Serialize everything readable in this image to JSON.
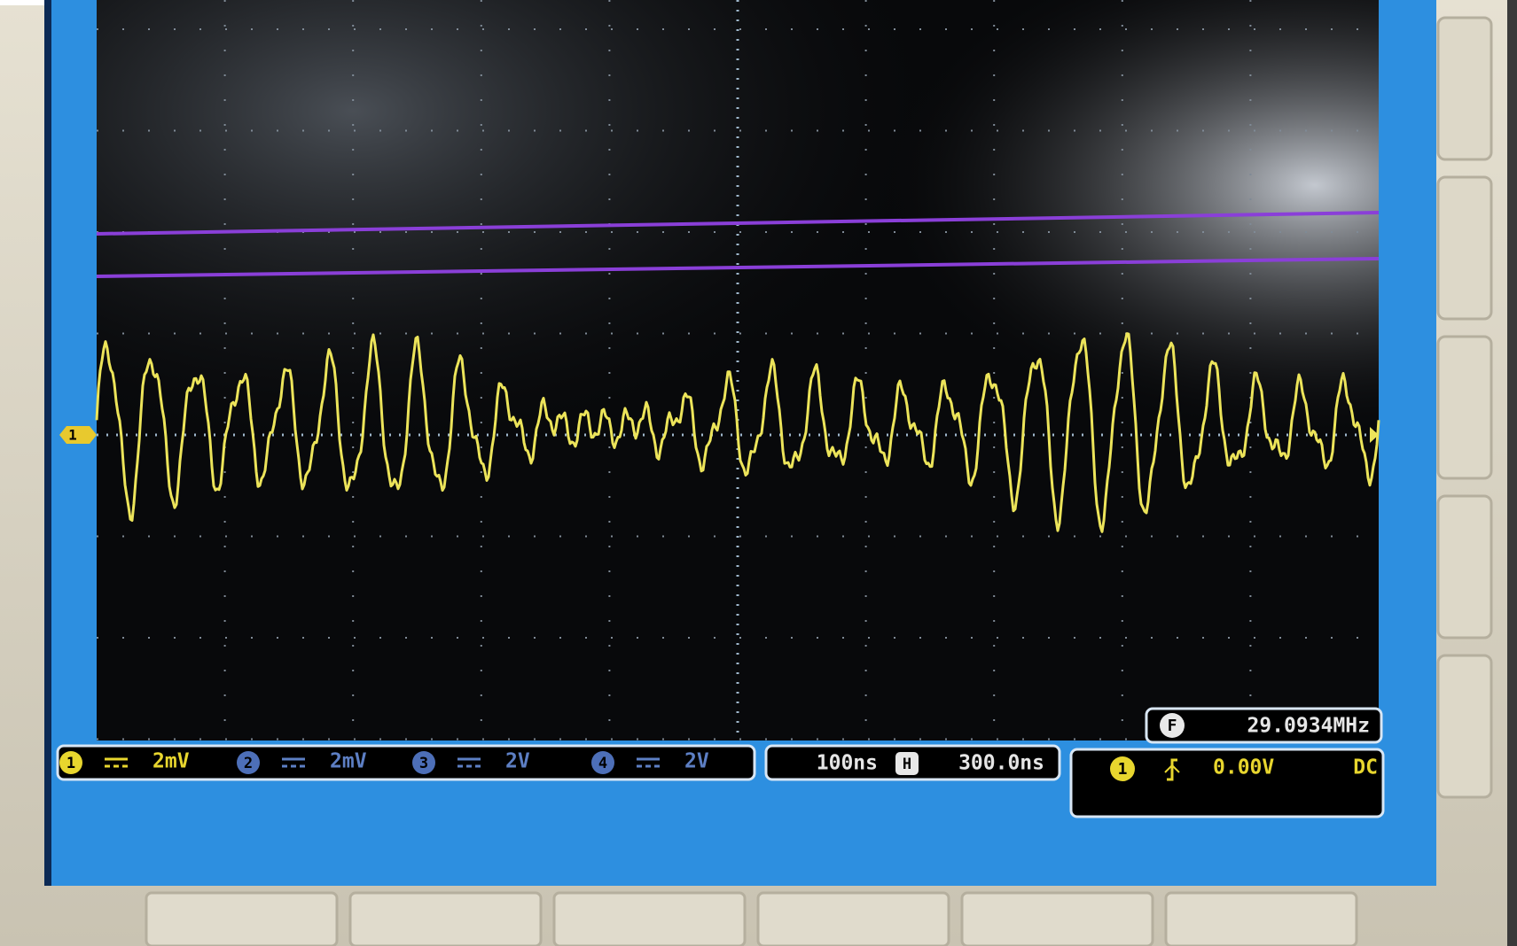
{
  "channel_marker": "1",
  "channels": [
    {
      "number": "1",
      "scale": "2mV"
    },
    {
      "number": "2",
      "scale": "2mV"
    },
    {
      "number": "3",
      "scale": "2V"
    },
    {
      "number": "4",
      "scale": "2V"
    }
  ],
  "timebase": {
    "scale": "100ns",
    "mode": "H",
    "position": "300.0ns"
  },
  "trigger": {
    "source": "1",
    "level": "0.00V",
    "coupling": "DC"
  },
  "frequency": {
    "label": "F",
    "value": "29.0934MHz"
  }
}
